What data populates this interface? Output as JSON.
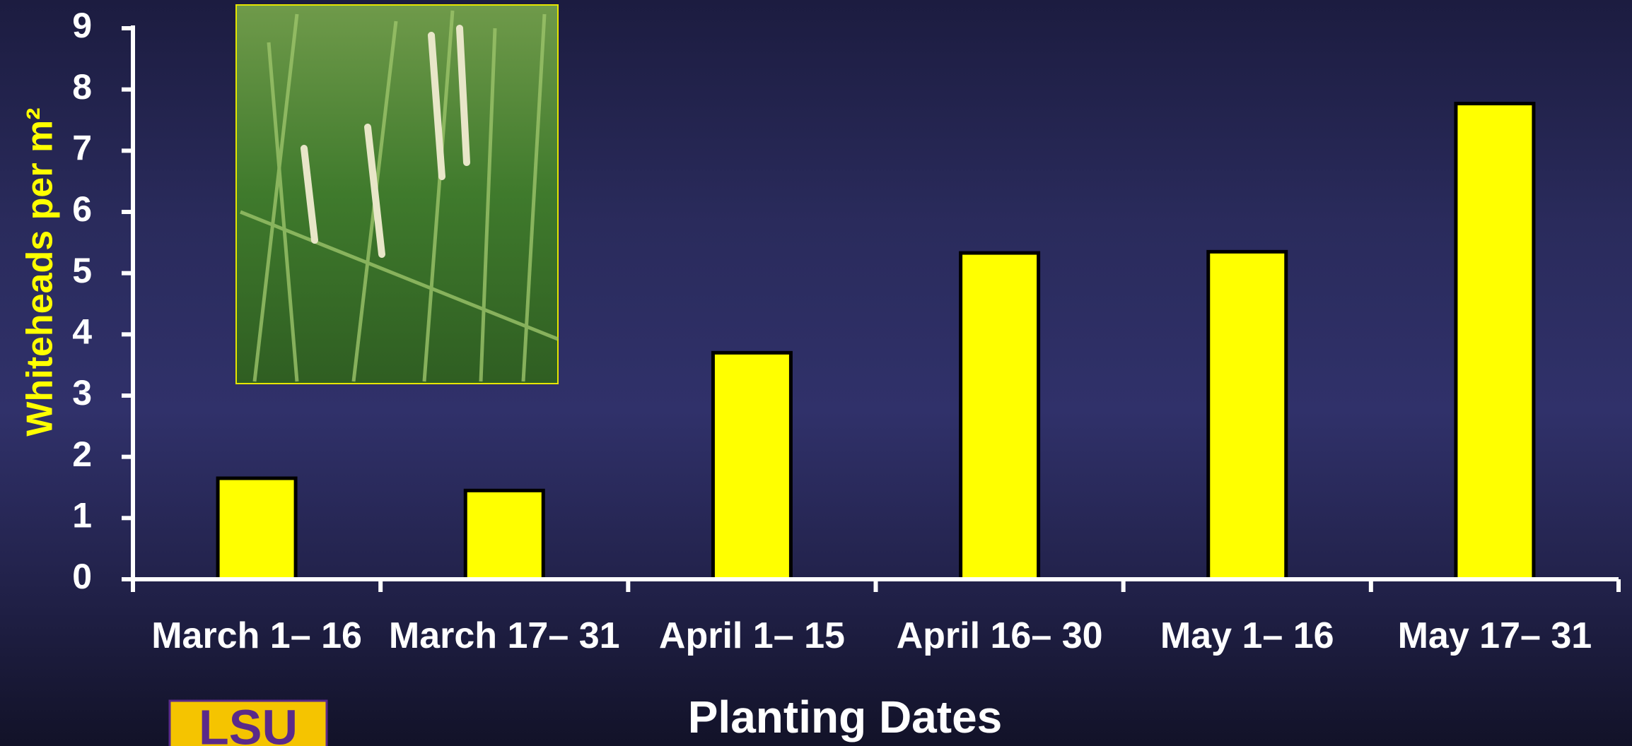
{
  "chart_data": {
    "type": "bar",
    "y_label": "Whiteheads per m²",
    "x_label": "Planting Dates",
    "categories": [
      "March 1– 16",
      "March 17– 31",
      "April 1– 15",
      "April 16– 30",
      "May 1– 16",
      "May 17– 31"
    ],
    "values": [
      1.65,
      1.45,
      3.7,
      5.33,
      5.35,
      7.77
    ],
    "color": "#ffff00",
    "ylim": [
      0,
      9
    ],
    "yticks": [
      0,
      1,
      2,
      3,
      4,
      5,
      6,
      7,
      8,
      9
    ],
    "grid": false,
    "logo": "LSU"
  }
}
